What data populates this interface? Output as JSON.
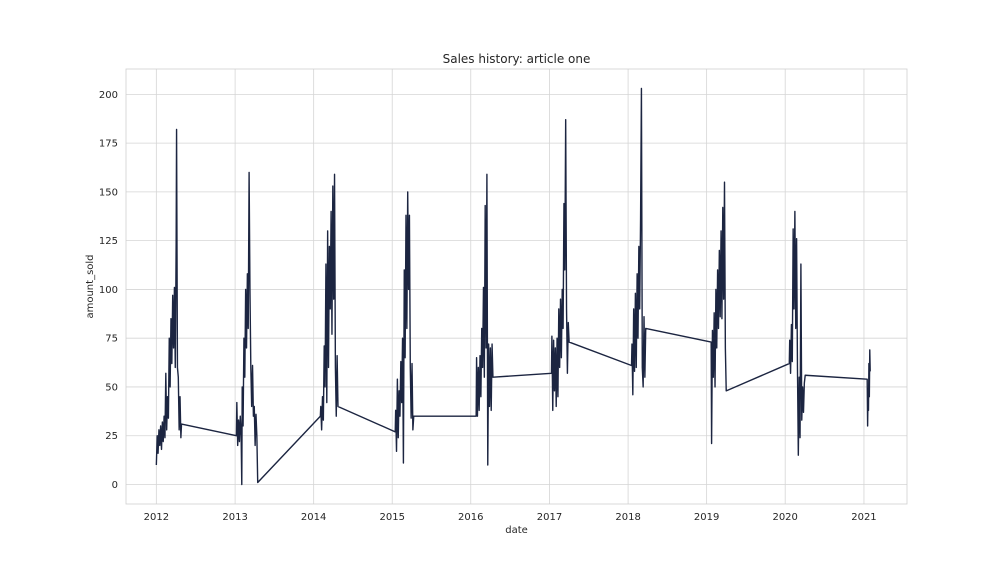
{
  "chart_data": {
    "type": "line",
    "title": "Sales history: article one",
    "xlabel": "date",
    "ylabel": "amount_sold",
    "xlim": [
      "2011-08-13",
      "2021-07-20"
    ],
    "ylim": [
      -10,
      213
    ],
    "x_ticks": [
      "2012",
      "2013",
      "2014",
      "2015",
      "2016",
      "2017",
      "2018",
      "2019",
      "2020",
      "2021"
    ],
    "y_ticks": [
      0,
      25,
      50,
      75,
      100,
      125,
      150,
      175,
      200
    ],
    "grid": true,
    "line_color": "#1c2541",
    "series": [
      {
        "values": [
          [
            "2012-01-01",
            10
          ],
          [
            "2012-01-05",
            25
          ],
          [
            "2012-01-09",
            16
          ],
          [
            "2012-01-13",
            28
          ],
          [
            "2012-01-17",
            20
          ],
          [
            "2012-01-21",
            30
          ],
          [
            "2012-01-25",
            18
          ],
          [
            "2012-01-29",
            32
          ],
          [
            "2012-02-02",
            22
          ],
          [
            "2012-02-06",
            35
          ],
          [
            "2012-02-10",
            24
          ],
          [
            "2012-02-14",
            57
          ],
          [
            "2012-02-18",
            28
          ],
          [
            "2012-02-22",
            45
          ],
          [
            "2012-02-26",
            34
          ],
          [
            "2012-03-01",
            75
          ],
          [
            "2012-03-05",
            50
          ],
          [
            "2012-03-09",
            85
          ],
          [
            "2012-03-13",
            62
          ],
          [
            "2012-03-17",
            97
          ],
          [
            "2012-03-21",
            70
          ],
          [
            "2012-03-25",
            101
          ],
          [
            "2012-03-29",
            60
          ],
          [
            "2012-04-02",
            123
          ],
          [
            "2012-04-04",
            182
          ],
          [
            "2012-04-08",
            60
          ],
          [
            "2012-04-12",
            55
          ],
          [
            "2012-04-16",
            28
          ],
          [
            "2012-04-20",
            45
          ],
          [
            "2012-04-24",
            24
          ],
          [
            "2012-04-27",
            31
          ],
          [
            "2013-01-07",
            25
          ],
          [
            "2013-01-09",
            42
          ],
          [
            "2013-01-13",
            20
          ],
          [
            "2013-01-17",
            33
          ],
          [
            "2013-01-21",
            22
          ],
          [
            "2013-01-25",
            35
          ],
          [
            "2013-01-29",
            25
          ],
          [
            "2013-02-01",
            0
          ],
          [
            "2013-02-03",
            50
          ],
          [
            "2013-02-07",
            30
          ],
          [
            "2013-02-11",
            75
          ],
          [
            "2013-02-15",
            55
          ],
          [
            "2013-02-19",
            100
          ],
          [
            "2013-02-23",
            70
          ],
          [
            "2013-02-27",
            108
          ],
          [
            "2013-03-03",
            80
          ],
          [
            "2013-03-07",
            160
          ],
          [
            "2013-03-11",
            100
          ],
          [
            "2013-03-15",
            60
          ],
          [
            "2013-03-19",
            40
          ],
          [
            "2013-03-23",
            61
          ],
          [
            "2013-03-27",
            35
          ],
          [
            "2013-03-31",
            40
          ],
          [
            "2013-04-04",
            20
          ],
          [
            "2013-04-08",
            36
          ],
          [
            "2013-04-12",
            25
          ],
          [
            "2013-04-16",
            1
          ],
          [
            "2014-02-01",
            35
          ],
          [
            "2014-02-03",
            40
          ],
          [
            "2014-02-07",
            28
          ],
          [
            "2014-02-11",
            45
          ],
          [
            "2014-02-15",
            33
          ],
          [
            "2014-02-19",
            71
          ],
          [
            "2014-02-23",
            50
          ],
          [
            "2014-02-27",
            113
          ],
          [
            "2014-03-03",
            42
          ],
          [
            "2014-03-07",
            130
          ],
          [
            "2014-03-11",
            60
          ],
          [
            "2014-03-15",
            122
          ],
          [
            "2014-03-19",
            90
          ],
          [
            "2014-03-23",
            140
          ],
          [
            "2014-03-27",
            77
          ],
          [
            "2014-03-31",
            153
          ],
          [
            "2014-04-04",
            95
          ],
          [
            "2014-04-08",
            159
          ],
          [
            "2014-04-12",
            60
          ],
          [
            "2014-04-16",
            35
          ],
          [
            "2014-04-20",
            66
          ],
          [
            "2014-04-24",
            40
          ],
          [
            "2015-01-15",
            27
          ],
          [
            "2015-01-17",
            38
          ],
          [
            "2015-01-21",
            17
          ],
          [
            "2015-01-25",
            54
          ],
          [
            "2015-01-29",
            24
          ],
          [
            "2015-02-02",
            48
          ],
          [
            "2015-02-06",
            35
          ],
          [
            "2015-02-10",
            63
          ],
          [
            "2015-02-14",
            42
          ],
          [
            "2015-02-18",
            75
          ],
          [
            "2015-02-22",
            11
          ],
          [
            "2015-02-26",
            110
          ],
          [
            "2015-03-02",
            65
          ],
          [
            "2015-03-06",
            138
          ],
          [
            "2015-03-10",
            80
          ],
          [
            "2015-03-14",
            150
          ],
          [
            "2015-03-18",
            100
          ],
          [
            "2015-03-22",
            138
          ],
          [
            "2015-03-26",
            60
          ],
          [
            "2015-03-30",
            34
          ],
          [
            "2015-04-03",
            62
          ],
          [
            "2015-04-07",
            28
          ],
          [
            "2015-04-11",
            35
          ],
          [
            "2016-01-26",
            35
          ],
          [
            "2016-01-28",
            65
          ],
          [
            "2016-02-01",
            35
          ],
          [
            "2016-02-05",
            60
          ],
          [
            "2016-02-09",
            38
          ],
          [
            "2016-02-13",
            66
          ],
          [
            "2016-02-17",
            45
          ],
          [
            "2016-02-21",
            80
          ],
          [
            "2016-02-25",
            60
          ],
          [
            "2016-02-29",
            101
          ],
          [
            "2016-03-04",
            55
          ],
          [
            "2016-03-08",
            143
          ],
          [
            "2016-03-12",
            70
          ],
          [
            "2016-03-16",
            159
          ],
          [
            "2016-03-20",
            10
          ],
          [
            "2016-03-24",
            72
          ],
          [
            "2016-03-28",
            40
          ],
          [
            "2016-04-01",
            70
          ],
          [
            "2016-04-05",
            38
          ],
          [
            "2016-04-09",
            72
          ],
          [
            "2016-04-13",
            55
          ],
          [
            "2017-01-10",
            57
          ],
          [
            "2017-01-12",
            76
          ],
          [
            "2017-01-16",
            38
          ],
          [
            "2017-01-20",
            74
          ],
          [
            "2017-01-24",
            48
          ],
          [
            "2017-01-28",
            70
          ],
          [
            "2017-02-01",
            40
          ],
          [
            "2017-02-05",
            75
          ],
          [
            "2017-02-09",
            45
          ],
          [
            "2017-02-13",
            90
          ],
          [
            "2017-02-17",
            60
          ],
          [
            "2017-02-21",
            95
          ],
          [
            "2017-02-25",
            65
          ],
          [
            "2017-03-01",
            100
          ],
          [
            "2017-03-05",
            80
          ],
          [
            "2017-03-09",
            144
          ],
          [
            "2017-03-13",
            110
          ],
          [
            "2017-03-17",
            187
          ],
          [
            "2017-03-21",
            90
          ],
          [
            "2017-03-25",
            57
          ],
          [
            "2017-03-29",
            83
          ],
          [
            "2017-04-02",
            73
          ],
          [
            "2018-01-17",
            61
          ],
          [
            "2018-01-19",
            72
          ],
          [
            "2018-01-23",
            46
          ],
          [
            "2018-01-27",
            90
          ],
          [
            "2018-01-31",
            58
          ],
          [
            "2018-02-04",
            98
          ],
          [
            "2018-02-08",
            60
          ],
          [
            "2018-02-12",
            108
          ],
          [
            "2018-02-16",
            75
          ],
          [
            "2018-02-20",
            122
          ],
          [
            "2018-02-24",
            90
          ],
          [
            "2018-02-28",
            136
          ],
          [
            "2018-03-04",
            203
          ],
          [
            "2018-03-08",
            60
          ],
          [
            "2018-03-12",
            50
          ],
          [
            "2018-03-16",
            86
          ],
          [
            "2018-03-20",
            55
          ],
          [
            "2018-03-24",
            80
          ],
          [
            "2019-01-22",
            73
          ],
          [
            "2019-01-24",
            21
          ],
          [
            "2019-01-28",
            79
          ],
          [
            "2019-02-01",
            55
          ],
          [
            "2019-02-05",
            88
          ],
          [
            "2019-02-09",
            50
          ],
          [
            "2019-02-13",
            100
          ],
          [
            "2019-02-17",
            70
          ],
          [
            "2019-02-21",
            110
          ],
          [
            "2019-02-25",
            80
          ],
          [
            "2019-03-01",
            120
          ],
          [
            "2019-03-05",
            86
          ],
          [
            "2019-03-09",
            130
          ],
          [
            "2019-03-13",
            85
          ],
          [
            "2019-03-17",
            142
          ],
          [
            "2019-03-21",
            95
          ],
          [
            "2019-03-25",
            155
          ],
          [
            "2019-03-29",
            70
          ],
          [
            "2019-04-02",
            48
          ],
          [
            "2020-01-20",
            62
          ],
          [
            "2020-01-22",
            74
          ],
          [
            "2020-01-26",
            57
          ],
          [
            "2020-01-30",
            82
          ],
          [
            "2020-02-03",
            63
          ],
          [
            "2020-02-07",
            131
          ],
          [
            "2020-02-11",
            90
          ],
          [
            "2020-02-15",
            140
          ],
          [
            "2020-02-19",
            80
          ],
          [
            "2020-02-23",
            126
          ],
          [
            "2020-02-27",
            60
          ],
          [
            "2020-03-02",
            15
          ],
          [
            "2020-03-06",
            55
          ],
          [
            "2020-03-10",
            24
          ],
          [
            "2020-03-14",
            113
          ],
          [
            "2020-03-18",
            33
          ],
          [
            "2020-03-22",
            50
          ],
          [
            "2020-03-26",
            37
          ],
          [
            "2020-03-30",
            52
          ],
          [
            "2020-04-03",
            56
          ],
          [
            "2021-01-16",
            54
          ],
          [
            "2021-01-18",
            30
          ],
          [
            "2021-01-20",
            48
          ],
          [
            "2021-01-22",
            38
          ],
          [
            "2021-01-24",
            62
          ],
          [
            "2021-01-26",
            45
          ],
          [
            "2021-01-28",
            69
          ],
          [
            "2021-01-30",
            58
          ]
        ]
      }
    ]
  }
}
